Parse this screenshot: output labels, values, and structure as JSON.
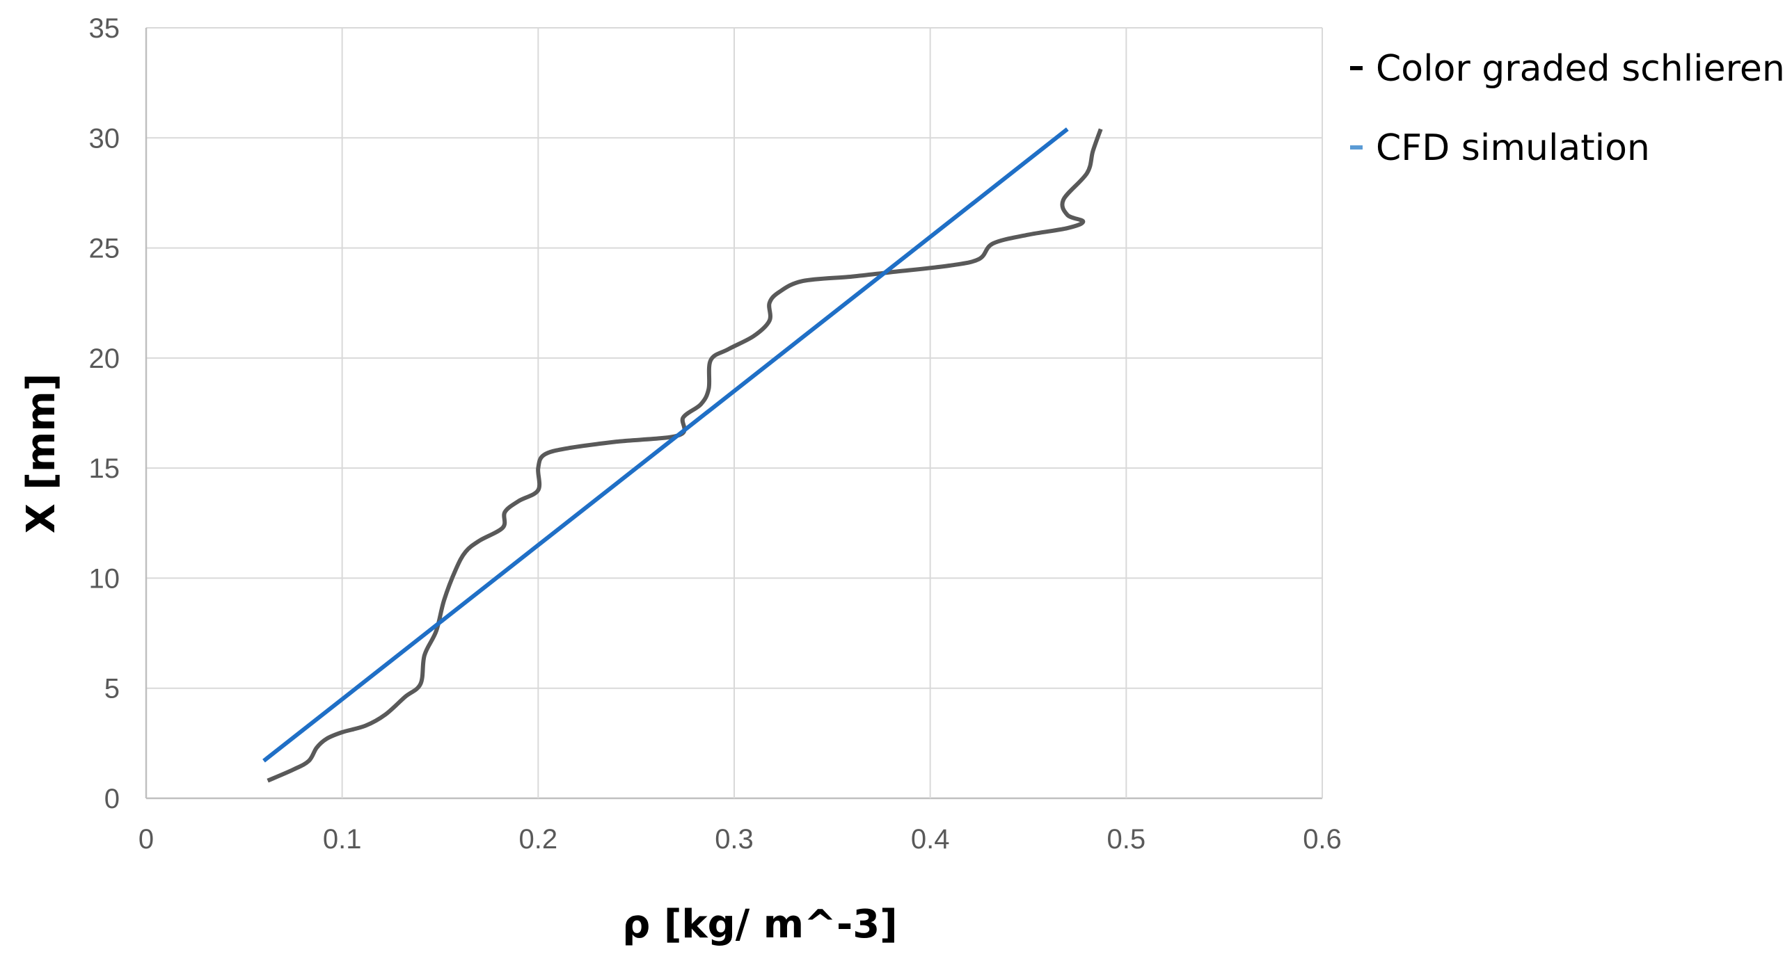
{
  "chart_data": {
    "type": "line",
    "title": "",
    "xlabel": "ρ [kg/ m^-3]",
    "ylabel": "X [mm]",
    "xlim": [
      0,
      0.6
    ],
    "ylim": [
      0,
      35
    ],
    "x_ticks": [
      "0",
      "0.1",
      "0.2",
      "0.3",
      "0.4",
      "0.5",
      "0.6"
    ],
    "y_ticks": [
      "0",
      "5",
      "10",
      "15",
      "20",
      "25",
      "30",
      "35"
    ],
    "x_tick_values": [
      0,
      0.1,
      0.2,
      0.3,
      0.4,
      0.5,
      0.6
    ],
    "y_tick_values": [
      0,
      5,
      10,
      15,
      20,
      25,
      30,
      35
    ],
    "grid": "on",
    "legend_placement": "right",
    "series": [
      {
        "name": "Color graded schlieren",
        "color": "#595959",
        "points": [
          [
            0.062,
            0.8
          ],
          [
            0.075,
            1.3
          ],
          [
            0.083,
            1.7
          ],
          [
            0.087,
            2.3
          ],
          [
            0.092,
            2.7
          ],
          [
            0.1,
            3.0
          ],
          [
            0.112,
            3.3
          ],
          [
            0.122,
            3.8
          ],
          [
            0.132,
            4.6
          ],
          [
            0.14,
            5.2
          ],
          [
            0.142,
            6.5
          ],
          [
            0.148,
            7.6
          ],
          [
            0.152,
            9.0
          ],
          [
            0.158,
            10.4
          ],
          [
            0.163,
            11.2
          ],
          [
            0.17,
            11.7
          ],
          [
            0.182,
            12.3
          ],
          [
            0.183,
            13.0
          ],
          [
            0.19,
            13.5
          ],
          [
            0.2,
            14.0
          ],
          [
            0.2,
            15.0
          ],
          [
            0.203,
            15.6
          ],
          [
            0.215,
            15.9
          ],
          [
            0.24,
            16.2
          ],
          [
            0.272,
            16.5
          ],
          [
            0.274,
            17.3
          ],
          [
            0.283,
            17.9
          ],
          [
            0.287,
            18.6
          ],
          [
            0.288,
            19.9
          ],
          [
            0.297,
            20.4
          ],
          [
            0.31,
            21.0
          ],
          [
            0.318,
            21.7
          ],
          [
            0.318,
            22.5
          ],
          [
            0.323,
            23.0
          ],
          [
            0.335,
            23.5
          ],
          [
            0.36,
            23.7
          ],
          [
            0.38,
            23.9
          ],
          [
            0.41,
            24.2
          ],
          [
            0.425,
            24.5
          ],
          [
            0.432,
            25.2
          ],
          [
            0.45,
            25.6
          ],
          [
            0.47,
            25.9
          ],
          [
            0.478,
            26.2
          ],
          [
            0.47,
            26.5
          ],
          [
            0.468,
            27.2
          ],
          [
            0.48,
            28.4
          ],
          [
            0.483,
            29.4
          ],
          [
            0.487,
            30.4
          ]
        ]
      },
      {
        "name": "CFD simulation",
        "color": "#1f6fc6",
        "points": [
          [
            0.06,
            1.7
          ],
          [
            0.47,
            30.4
          ]
        ]
      }
    ]
  }
}
